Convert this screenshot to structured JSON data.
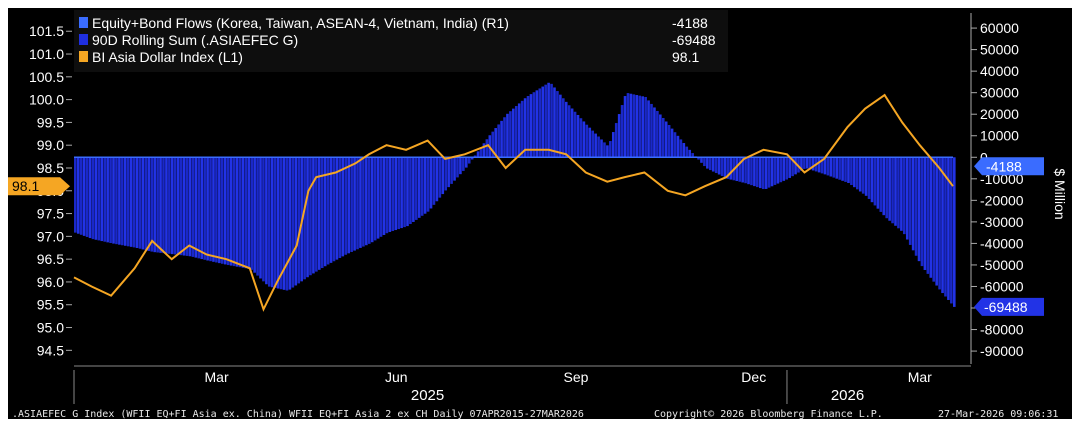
{
  "chart_data": {
    "type": "bar+line",
    "legend": {
      "placement": "top-left",
      "entries": [
        {
          "label": "Equity+Bond Flows (Korea, Taiwan, ASEAN-4, Vietnam, India) (R1)",
          "value": "-4188",
          "color": "#3a6cff"
        },
        {
          "label": "90D Rolling Sum (.ASIAEFEC G)",
          "value": "-69488",
          "color": "#1f2fe0"
        },
        {
          "label": "BI Asia Dollar Index (L1)",
          "value": "98.1",
          "color": "#f5a623"
        }
      ]
    },
    "left_axis": {
      "ticks": [
        "101.5",
        "101.0",
        "100.5",
        "100.0",
        "99.5",
        "99.0",
        "98.5",
        "98.0",
        "97.5",
        "97.0",
        "96.5",
        "96.0",
        "95.5",
        "95.0",
        "94.5"
      ],
      "ylim": [
        94.2,
        101.9
      ],
      "current_label": "98.1"
    },
    "right_axis": {
      "title": "$ Million",
      "ticks": [
        "60000",
        "50000",
        "40000",
        "30000",
        "20000",
        "10000",
        "0",
        "-10000",
        "-20000",
        "-30000",
        "-40000",
        "-50000",
        "-60000",
        "-70000",
        "-80000",
        "-90000"
      ],
      "ylim": [
        -96000,
        67000
      ],
      "zero_value": 0,
      "current_flow_label": "-4188",
      "current_rolling_label": "-69488"
    },
    "x_axis": {
      "months": [
        "Mar",
        "Jun",
        "Sep",
        "Dec",
        "Mar"
      ],
      "years": [
        "2025",
        "2026"
      ],
      "range": [
        "2025-01-01",
        "2026-03-27"
      ]
    },
    "rolling_sum_series": {
      "name": "90D Rolling Sum (.ASIAEFEC G)",
      "dates": [
        "2025-01-01",
        "2025-01-10",
        "2025-01-20",
        "2025-02-01",
        "2025-02-10",
        "2025-02-20",
        "2025-03-01",
        "2025-03-10",
        "2025-03-20",
        "2025-04-01",
        "2025-04-10",
        "2025-04-20",
        "2025-05-01",
        "2025-05-10",
        "2025-05-20",
        "2025-06-01",
        "2025-06-10",
        "2025-06-20",
        "2025-07-01",
        "2025-07-10",
        "2025-07-20",
        "2025-08-01",
        "2025-08-10",
        "2025-08-20",
        "2025-09-01",
        "2025-09-10",
        "2025-09-20",
        "2025-10-01",
        "2025-10-10",
        "2025-10-20",
        "2025-11-01",
        "2025-11-10",
        "2025-11-20",
        "2025-12-01",
        "2025-12-10",
        "2025-12-20",
        "2026-01-01",
        "2026-01-10",
        "2026-01-20",
        "2026-02-01",
        "2026-02-10",
        "2026-02-20",
        "2026-03-01",
        "2026-03-10",
        "2026-03-20",
        "2026-03-27"
      ],
      "values": [
        -35000,
        -38000,
        -40000,
        -42000,
        -44000,
        -45000,
        -46000,
        -48000,
        -50000,
        -52000,
        -60000,
        -62000,
        -55000,
        -50000,
        -45000,
        -40000,
        -35000,
        -32000,
        -25000,
        -15000,
        -5000,
        10000,
        20000,
        28000,
        35000,
        25000,
        15000,
        5000,
        30000,
        28000,
        15000,
        5000,
        -5000,
        -10000,
        -12000,
        -15000,
        -10000,
        -5000,
        -8000,
        -12000,
        -18000,
        -28000,
        -35000,
        -50000,
        -62000,
        -69488
      ]
    },
    "daily_flow_series": {
      "name": "Equity+Bond Flows (Korea, Taiwan, ASEAN-4, Vietnam, India) (R1)",
      "last_value": -4188
    },
    "dollar_index_series": {
      "name": "BI Asia Dollar Index (L1)",
      "dates": [
        "2025-01-01",
        "2025-01-10",
        "2025-01-20",
        "2025-02-01",
        "2025-02-10",
        "2025-02-20",
        "2025-03-01",
        "2025-03-10",
        "2025-03-20",
        "2025-04-01",
        "2025-04-08",
        "2025-04-15",
        "2025-04-25",
        "2025-05-01",
        "2025-05-05",
        "2025-05-15",
        "2025-05-25",
        "2025-06-01",
        "2025-06-10",
        "2025-06-20",
        "2025-07-01",
        "2025-07-10",
        "2025-07-20",
        "2025-08-01",
        "2025-08-10",
        "2025-08-20",
        "2025-09-01",
        "2025-09-10",
        "2025-09-20",
        "2025-10-01",
        "2025-10-10",
        "2025-10-20",
        "2025-11-01",
        "2025-11-10",
        "2025-11-20",
        "2025-12-01",
        "2025-12-10",
        "2025-12-20",
        "2026-01-01",
        "2026-01-10",
        "2026-01-20",
        "2026-02-01",
        "2026-02-10",
        "2026-02-20",
        "2026-03-01",
        "2026-03-10",
        "2026-03-20",
        "2026-03-27"
      ],
      "values": [
        96.1,
        95.9,
        95.7,
        96.3,
        96.9,
        96.5,
        96.8,
        96.6,
        96.5,
        96.3,
        95.4,
        96.0,
        96.8,
        98.0,
        98.3,
        98.4,
        98.6,
        98.8,
        99.0,
        98.9,
        99.1,
        98.7,
        98.8,
        99.0,
        98.5,
        98.9,
        98.9,
        98.8,
        98.4,
        98.2,
        98.3,
        98.4,
        98.0,
        97.9,
        98.1,
        98.3,
        98.7,
        98.9,
        98.8,
        98.4,
        98.7,
        99.4,
        99.8,
        100.1,
        99.5,
        99.0,
        98.5,
        98.1
      ]
    }
  },
  "footer": {
    "left": ".ASIAEFEC G Index (WFII EQ+FI Asia ex. China) WFII EQ+FI Asia 2 ex CH Daily 07APR2015-27MAR2026",
    "center": "Copyright© 2026 Bloomberg Finance L.P.",
    "right": "27-Mar-2026 09:06:31"
  }
}
